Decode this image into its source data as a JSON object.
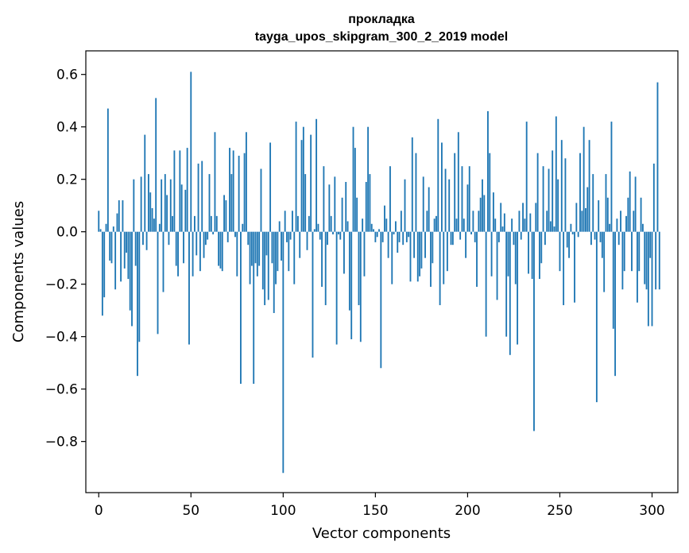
{
  "chart_data": {
    "type": "bar",
    "title": [
      "прокладка",
      "tayga_upos_skipgram_300_2_2019 model"
    ],
    "xlabel": "Vector components",
    "ylabel": "Components values",
    "xlim": [
      -7,
      314
    ],
    "ylim": [
      -0.995,
      0.69
    ],
    "xticks": [
      0,
      50,
      100,
      150,
      200,
      250,
      300
    ],
    "yticks": [
      -0.8,
      -0.6,
      -0.4,
      -0.2,
      0.0,
      0.2,
      0.4,
      0.6
    ],
    "ytick_labels": [
      "−0.8",
      "−0.6",
      "−0.4",
      "−0.2",
      "0.0",
      "0.2",
      "0.4",
      "0.6"
    ],
    "bar_color": "#1f77b4",
    "values": [
      0.08,
      0.01,
      -0.32,
      -0.25,
      0.03,
      0.47,
      -0.11,
      -0.12,
      0.02,
      -0.22,
      0.07,
      0.12,
      -0.19,
      0.12,
      -0.14,
      -0.08,
      -0.18,
      -0.3,
      -0.36,
      0.2,
      -0.13,
      -0.55,
      -0.42,
      0.21,
      -0.05,
      0.37,
      -0.07,
      0.22,
      0.15,
      0.09,
      0.05,
      0.51,
      -0.39,
      0.03,
      0.2,
      -0.23,
      0.22,
      0.14,
      -0.05,
      0.2,
      0.06,
      0.31,
      -0.13,
      -0.17,
      0.31,
      0.18,
      -0.12,
      0.16,
      0.32,
      -0.43,
      0.61,
      -0.17,
      0.06,
      -0.09,
      0.26,
      -0.15,
      0.27,
      -0.1,
      -0.05,
      -0.03,
      0.22,
      0.06,
      -0.01,
      0.38,
      0.06,
      -0.13,
      -0.14,
      -0.15,
      0.14,
      0.12,
      -0.04,
      0.32,
      0.22,
      0.31,
      -0.02,
      -0.17,
      0.29,
      -0.58,
      0.03,
      0.3,
      0.38,
      -0.05,
      -0.2,
      -0.13,
      -0.58,
      -0.12,
      -0.17,
      -0.13,
      0.24,
      -0.22,
      -0.28,
      -0.09,
      -0.26,
      0.34,
      -0.12,
      -0.31,
      -0.2,
      -0.15,
      0.04,
      -0.11,
      -0.92,
      0.08,
      -0.04,
      -0.15,
      -0.03,
      0.08,
      -0.2,
      0.42,
      0.06,
      -0.1,
      0.35,
      0.4,
      0.22,
      -0.07,
      0.06,
      0.37,
      -0.48,
      0.01,
      0.43,
      0.03,
      -0.03,
      -0.21,
      0.25,
      -0.28,
      -0.05,
      0.18,
      0.06,
      -0.01,
      0.21,
      -0.43,
      -0.01,
      -0.03,
      0.13,
      -0.16,
      0.19,
      0.04,
      -0.3,
      -0.41,
      0.4,
      0.32,
      0.13,
      -0.28,
      -0.42,
      0.05,
      -0.17,
      0.19,
      0.4,
      0.22,
      0.03,
      0.01,
      -0.04,
      -0.02,
      0.01,
      -0.52,
      -0.04,
      0.1,
      0.05,
      -0.1,
      0.25,
      -0.2,
      -0.01,
      0.04,
      -0.08,
      -0.04,
      0.08,
      -0.05,
      0.2,
      -0.04,
      -0.02,
      -0.19,
      0.36,
      -0.1,
      0.3,
      -0.19,
      -0.17,
      -0.14,
      0.21,
      -0.1,
      0.08,
      0.17,
      -0.21,
      -0.12,
      0.05,
      0.06,
      0.43,
      -0.28,
      0.34,
      -0.2,
      0.24,
      -0.15,
      0.2,
      -0.05,
      -0.05,
      0.3,
      0.05,
      0.38,
      -0.03,
      0.25,
      0.05,
      -0.1,
      0.18,
      0.25,
      -0.01,
      0.08,
      -0.04,
      -0.21,
      0.08,
      0.13,
      0.2,
      0.14,
      -0.4,
      0.46,
      0.3,
      -0.17,
      0.15,
      0.05,
      -0.26,
      -0.04,
      0.11,
      0.02,
      0.07,
      -0.4,
      -0.17,
      -0.47,
      0.05,
      -0.05,
      -0.2,
      -0.43,
      0.08,
      -0.03,
      0.11,
      0.05,
      0.42,
      -0.16,
      0.07,
      -0.18,
      -0.76,
      0.11,
      0.3,
      -0.18,
      -0.12,
      0.25,
      -0.05,
      0.08,
      0.24,
      0.04,
      0.31,
      0.02,
      0.44,
      0.2,
      -0.15,
      0.35,
      -0.28,
      0.28,
      -0.06,
      -0.1,
      0.03,
      -0.01,
      -0.27,
      0.11,
      -0.02,
      0.3,
      0.08,
      0.4,
      0.09,
      0.17,
      0.35,
      -0.05,
      0.22,
      -0.03,
      -0.65,
      0.12,
      -0.04,
      -0.1,
      -0.23,
      0.22,
      0.13,
      0.03,
      0.42,
      -0.37,
      -0.55,
      0.05,
      -0.05,
      0.08,
      -0.22,
      -0.15,
      0.06,
      0.13,
      0.23,
      -0.15,
      0.08,
      0.21,
      -0.27,
      -0.15,
      0.13,
      0.03,
      -0.2,
      -0.22,
      -0.36,
      -0.1,
      -0.36,
      0.26,
      -0.22,
      0.57,
      -0.22
    ]
  }
}
